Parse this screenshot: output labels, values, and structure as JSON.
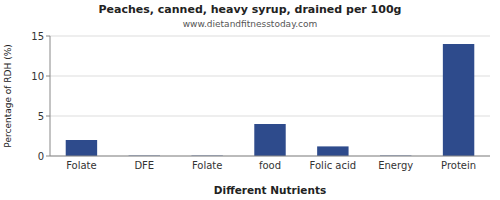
{
  "chart_data": {
    "type": "bar",
    "title": "Peaches, canned, heavy syrup, drained per 100g",
    "subtitle": "www.dietandfitnesstoday.com",
    "xlabel": "Different Nutrients",
    "ylabel": "Percentage of RDH (%)",
    "categories": [
      "Folate",
      "DFE",
      "Folate",
      "food",
      "Folic acid",
      "Energy",
      "Protein"
    ],
    "values": [
      2.0,
      0.05,
      0.05,
      4.0,
      1.2,
      0.05,
      14.0
    ],
    "color": "#2e4b8c",
    "ylim": [
      0,
      15
    ],
    "yticks": [
      0,
      5,
      10,
      15
    ],
    "grid": true
  }
}
